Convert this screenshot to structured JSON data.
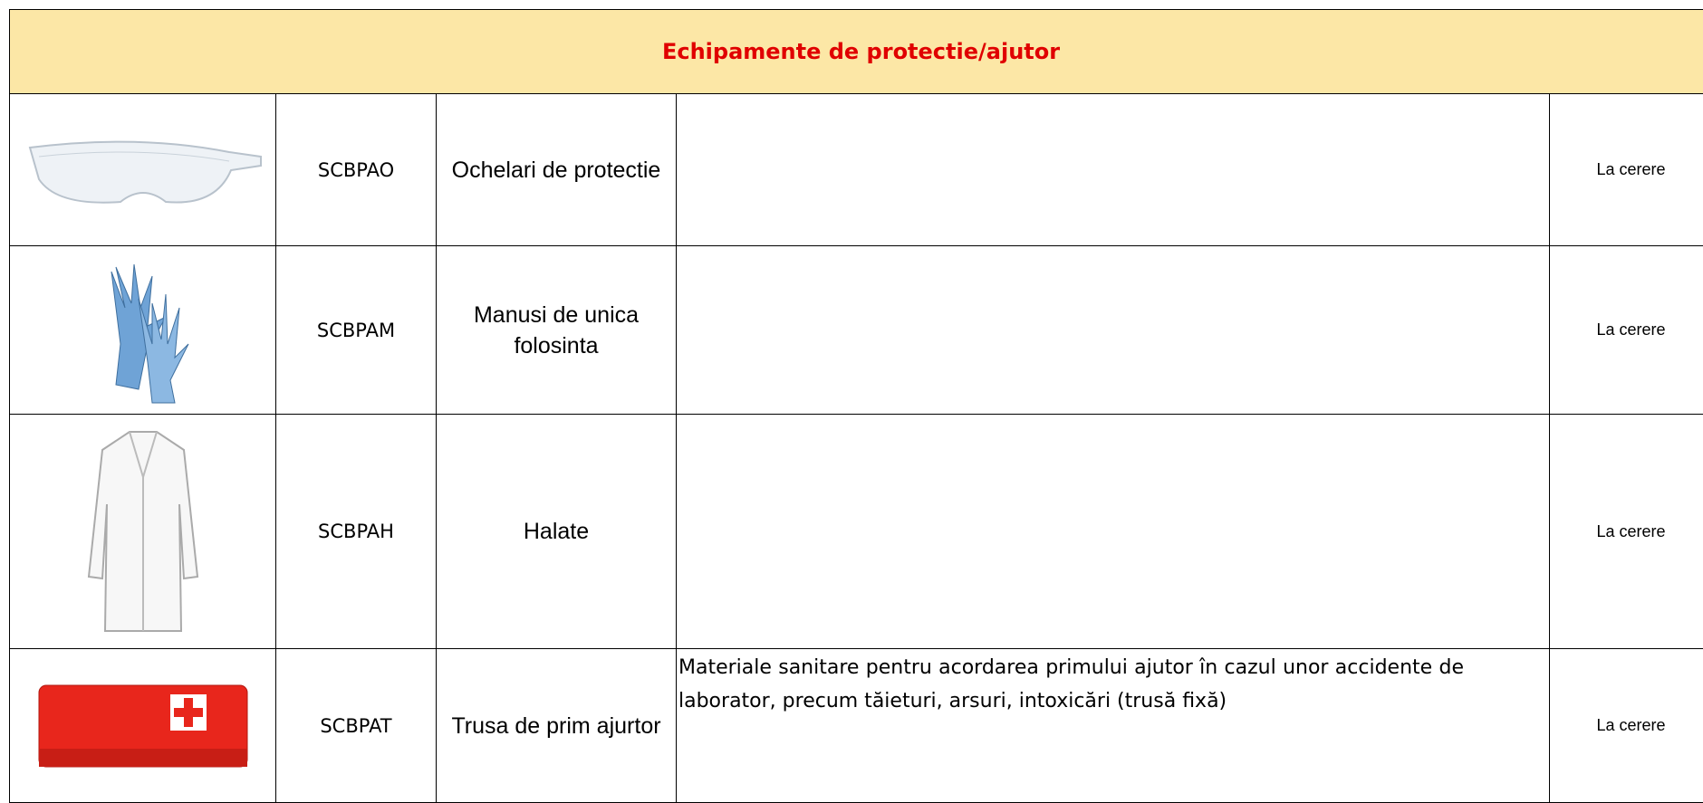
{
  "header": {
    "title": "Echipamente de protectie/ajutor"
  },
  "table": {
    "rows": [
      {
        "code": "SCBPAO",
        "name": "Ochelari de protectie",
        "description": "",
        "availability": "La cerere"
      },
      {
        "code": "SCBPAM",
        "name": "Manusi de unica folosinta",
        "description": "",
        "availability": "La cerere"
      },
      {
        "code": "SCBPAH",
        "name": "Halate",
        "description": "",
        "availability": "La cerere"
      },
      {
        "code": "SCBPAT",
        "name": "Trusa de prim ajurtor",
        "description": "Materiale sanitare pentru acordarea primului ajutor în cazul unor accidente de laborator, precum tăieturi, arsuri, intoxicări (trusă fixă)",
        "availability": "La cerere"
      }
    ]
  }
}
